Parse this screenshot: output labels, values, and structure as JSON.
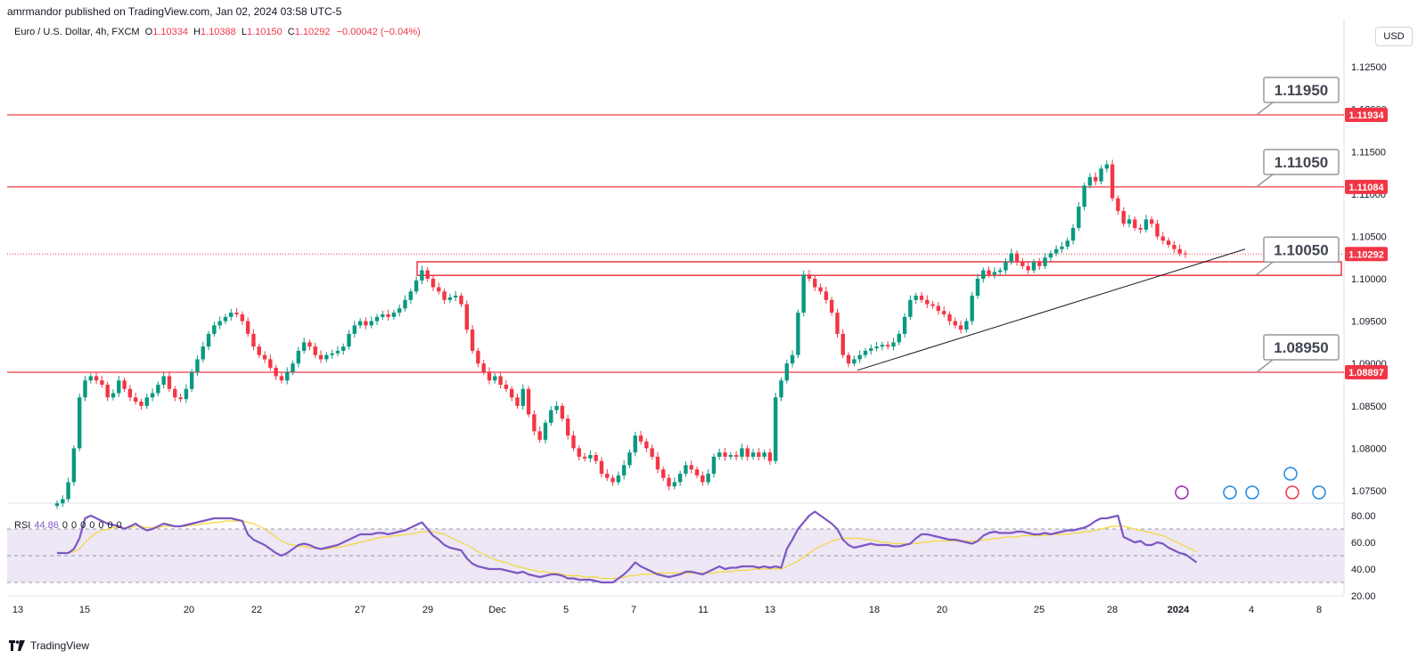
{
  "header": {
    "publisher": "amrmandor published on TradingView.com, Jan 02, 2024 03:58 UTC-5",
    "symbol": "Euro / U.S. Dollar, 4h, FXCM",
    "ohlc": [
      {
        "label": "O",
        "value": "1.10334"
      },
      {
        "label": "H",
        "value": "1.10388"
      },
      {
        "label": "L",
        "value": "1.10150"
      },
      {
        "label": "C",
        "value": "1.10292"
      }
    ],
    "change": "−0.00042 (−0.04%)",
    "currency": "USD"
  },
  "rsi_legend": {
    "label": "RSI",
    "value": "44.86",
    "extras": [
      "0",
      "0",
      "0",
      "0",
      "0",
      "0",
      "0"
    ]
  },
  "brand": {
    "name": "TradingView"
  },
  "colors": {
    "up": "#089981",
    "down": "#f23645",
    "level_line": "#f23645",
    "rsi_line": "#7e57c2",
    "rsi_ma": "#f5d73a",
    "rsi_band": "#ede7f6",
    "trendline": "#131722"
  },
  "chart_data": [
    {
      "type": "candlestick",
      "title": "",
      "ylim": [
        1.073,
        1.128
      ],
      "y_ticks": [
        "1.12500",
        "1.12000",
        "1.11500",
        "1.11000",
        "1.10500",
        "1.10000",
        "1.09500",
        "1.09000",
        "1.08500",
        "1.08000",
        "1.07500"
      ],
      "x_ticks": [
        "13",
        "15",
        "20",
        "22",
        "27",
        "29",
        "Dec",
        "5",
        "7",
        "11",
        "13",
        "18",
        "20",
        "25",
        "28",
        "2024",
        "4",
        "8"
      ],
      "price_tags": [
        {
          "value": "1.11934",
          "price": 1.11934,
          "role": "level"
        },
        {
          "value": "1.11084",
          "price": 1.11084,
          "role": "level"
        },
        {
          "value": "1.10292",
          "price": 1.10292,
          "role": "last"
        },
        {
          "value": "1.08897",
          "price": 1.08897,
          "role": "level"
        }
      ],
      "levels": [
        1.11934,
        1.11084,
        1.08897
      ],
      "callouts": [
        {
          "text": "1.11950",
          "target_price": 1.11934
        },
        {
          "text": "1.11050",
          "target_price": 1.11084
        },
        {
          "text": "1.10050",
          "target_price": 1.1005
        },
        {
          "text": "1.08950",
          "target_price": 1.08897
        }
      ],
      "zone": {
        "from_price": 1.1004,
        "to_price": 1.102
      },
      "trendline": [
        {
          "date": "Dec 17",
          "price": 1.0892
        },
        {
          "date": "Jan 4",
          "price": 1.1035
        }
      ],
      "closes": [
        1.0735,
        1.074,
        1.076,
        1.08,
        1.086,
        1.088,
        1.0885,
        1.088,
        1.0875,
        1.086,
        1.0865,
        1.088,
        1.087,
        1.086,
        1.0855,
        1.085,
        1.086,
        1.0865,
        1.0875,
        1.0885,
        1.087,
        1.086,
        1.0858,
        1.087,
        1.089,
        1.0905,
        1.092,
        1.0935,
        1.0945,
        1.095,
        1.0955,
        1.096,
        1.0958,
        1.095,
        1.0935,
        1.092,
        1.091,
        1.0905,
        1.0895,
        1.0885,
        1.088,
        1.089,
        1.09,
        1.0915,
        1.0925,
        1.092,
        1.091,
        1.0905,
        1.091,
        1.0912,
        1.0915,
        1.092,
        1.0935,
        1.0945,
        1.095,
        1.0945,
        1.095,
        1.0955,
        1.0958,
        1.0955,
        1.096,
        1.0965,
        1.0975,
        1.0985,
        1.0998,
        1.101,
        1.1,
        1.099,
        1.0985,
        1.0975,
        1.0978,
        1.098,
        1.097,
        1.094,
        1.0915,
        1.09,
        1.089,
        1.088,
        1.0885,
        1.0875,
        1.087,
        1.086,
        1.085,
        1.087,
        1.084,
        1.082,
        1.081,
        1.083,
        1.0845,
        1.085,
        1.0835,
        1.0815,
        1.08,
        1.079,
        1.0788,
        1.0792,
        1.0785,
        1.077,
        1.0765,
        1.076,
        1.0768,
        1.078,
        1.0795,
        1.0815,
        1.0808,
        1.08,
        1.079,
        1.0775,
        1.0765,
        1.0755,
        1.076,
        1.077,
        1.078,
        1.0775,
        1.0768,
        1.076,
        1.077,
        1.079,
        1.0795,
        1.079,
        1.0792,
        1.079,
        1.08,
        1.079,
        1.0795,
        1.079,
        1.0795,
        1.0785,
        1.086,
        1.088,
        1.09,
        1.091,
        1.096,
        1.1005,
        1.1,
        1.099,
        1.0985,
        1.0975,
        1.096,
        1.0935,
        1.091,
        1.09,
        1.0905,
        1.091,
        1.0915,
        1.0918,
        1.092,
        1.0922,
        1.092,
        1.0925,
        1.0935,
        1.0955,
        1.0975,
        1.098,
        1.0975,
        1.097,
        1.0968,
        1.0962,
        1.0958,
        1.095,
        1.0945,
        1.094,
        1.095,
        1.098,
        1.1,
        1.101,
        1.1005,
        1.1008,
        1.101,
        1.102,
        1.103,
        1.102,
        1.1015,
        1.101,
        1.102,
        1.1015,
        1.1025,
        1.103,
        1.1035,
        1.1038,
        1.1045,
        1.106,
        1.1085,
        1.111,
        1.112,
        1.1115,
        1.113,
        1.1135,
        1.1095,
        1.108,
        1.1065,
        1.107,
        1.106,
        1.1058,
        1.107,
        1.1065,
        1.105,
        1.1045,
        1.104,
        1.1035,
        1.103,
        1.1029
      ]
    },
    {
      "type": "line",
      "title": "RSI",
      "ylim": [
        20,
        85
      ],
      "y_ticks": [
        "80.00",
        "60.00",
        "40.00",
        "20.00"
      ],
      "bands": [
        30,
        50,
        70
      ],
      "series": [
        {
          "name": "RSI",
          "values": [
            52,
            52,
            52,
            55,
            63,
            78,
            80,
            78,
            76,
            74,
            73,
            72,
            70,
            72,
            74,
            71,
            69,
            70,
            72,
            74,
            73,
            72,
            72,
            73,
            74,
            75,
            76,
            77,
            78,
            78,
            78,
            78,
            77,
            76,
            66,
            62,
            60,
            58,
            55,
            52,
            50,
            52,
            55,
            58,
            59,
            58,
            56,
            55,
            56,
            57,
            58,
            60,
            62,
            64,
            66,
            66,
            66,
            67,
            67,
            66,
            67,
            68,
            69,
            71,
            73,
            75,
            70,
            65,
            62,
            58,
            56,
            55,
            54,
            48,
            44,
            42,
            41,
            40,
            40,
            40,
            39,
            38,
            37,
            38,
            36,
            35,
            34,
            35,
            36,
            36,
            35,
            33,
            33,
            32,
            32,
            32,
            31,
            30,
            30,
            30,
            33,
            36,
            40,
            45,
            42,
            40,
            38,
            36,
            35,
            34,
            35,
            36,
            38,
            38,
            37,
            36,
            38,
            40,
            42,
            40,
            41,
            41,
            42,
            42,
            42,
            41,
            42,
            41,
            42,
            41,
            55,
            62,
            70,
            75,
            80,
            83,
            80,
            77,
            74,
            70,
            62,
            58,
            56,
            57,
            58,
            59,
            58,
            58,
            58,
            57,
            57,
            58,
            59,
            63,
            66,
            66,
            65,
            64,
            63,
            62,
            62,
            61,
            60,
            59,
            61,
            65,
            67,
            68,
            67,
            67,
            67,
            68,
            68,
            67,
            66,
            66,
            67,
            66,
            67,
            68,
            69,
            69,
            70,
            71,
            73,
            76,
            78,
            78,
            79,
            80,
            64,
            62,
            60,
            61,
            58,
            58,
            60,
            59,
            56,
            54,
            52,
            51,
            48,
            45
          ]
        },
        {
          "name": "RSI-MA",
          "values": [
            52,
            52,
            52,
            53,
            55,
            60,
            64,
            67,
            69,
            70,
            71,
            71,
            71,
            71,
            72,
            72,
            71,
            71,
            71,
            72,
            72,
            72,
            72,
            72,
            73,
            73,
            74,
            74,
            75,
            75,
            76,
            76,
            76,
            76,
            75,
            74,
            72,
            70,
            67,
            64,
            61,
            59,
            58,
            57,
            57,
            56,
            56,
            55,
            55,
            56,
            56,
            57,
            58,
            59,
            60,
            61,
            62,
            63,
            64,
            64,
            65,
            65,
            66,
            66,
            67,
            68,
            68,
            68,
            67,
            66,
            64,
            62,
            60,
            58,
            56,
            53,
            51,
            49,
            47,
            46,
            45,
            43,
            42,
            41,
            40,
            39,
            38,
            38,
            37,
            37,
            36,
            35,
            35,
            35,
            34,
            34,
            34,
            33,
            33,
            33,
            33,
            34,
            35,
            35,
            36,
            36,
            36,
            37,
            37,
            37,
            37,
            37,
            37,
            37,
            37,
            37,
            37,
            37,
            38,
            38,
            38,
            39,
            39,
            39,
            40,
            40,
            40,
            40,
            40,
            40,
            42,
            44,
            46,
            49,
            52,
            55,
            57,
            59,
            61,
            62,
            63,
            63,
            63,
            63,
            62,
            62,
            61,
            60,
            60,
            59,
            59,
            59,
            59,
            59,
            60,
            60,
            61,
            61,
            61,
            61,
            61,
            61,
            61,
            61,
            61,
            62,
            62,
            63,
            63,
            64,
            64,
            64,
            65,
            65,
            65,
            65,
            65,
            66,
            66,
            66,
            66,
            67,
            67,
            68,
            68,
            69,
            70,
            71,
            72,
            72,
            72,
            71,
            70,
            69,
            68,
            67,
            66,
            65,
            63,
            61,
            59,
            57,
            55,
            53
          ]
        }
      ]
    }
  ]
}
